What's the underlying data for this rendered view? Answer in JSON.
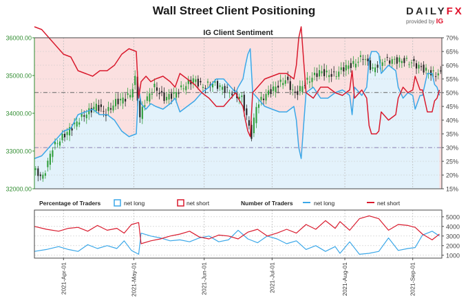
{
  "title": "Wall Street Client Positioning",
  "logo": {
    "brand_a": "DAILY",
    "brand_b": "FX",
    "provided_by": "provided by",
    "ig": "IG"
  },
  "colors": {
    "long": "#3aa7e8",
    "short": "#d9192c",
    "up": "#2f9e3b",
    "down": "#222222",
    "price_axis": "#2e8b2e",
    "long_fill": "#e3f2fb",
    "short_fill": "#fbe0e0"
  },
  "chart_data": {
    "type": "line",
    "title": "IG Client Sentiment",
    "x_range": [
      0,
      168
    ],
    "price_axis": {
      "ylim": [
        32000,
        36000
      ],
      "ticks": [
        "32000.00",
        "33000.00",
        "34000.00",
        "35000.00",
        "36000.00"
      ]
    },
    "pct_axis": {
      "ylim": [
        15,
        70
      ],
      "ticks": [
        "15%",
        "20%",
        "25%",
        "30%",
        "35%",
        "40%",
        "45%",
        "50%",
        "55%",
        "60%",
        "65%",
        "70%"
      ]
    },
    "count_axis": {
      "ylim": [
        700,
        5700
      ],
      "ticks": [
        "1000",
        "2000",
        "3000",
        "4000",
        "5000"
      ]
    },
    "x_ticks": [
      {
        "label": "2021-Apr-01",
        "x": 12
      },
      {
        "label": "2021-May-01",
        "x": 41
      },
      {
        "label": "2021-Jun-01",
        "x": 70
      },
      {
        "label": "2021-Jul-01",
        "x": 98
      },
      {
        "label": "2021-Aug-01",
        "x": 128
      },
      {
        "label": "2021-Sep-01",
        "x": 156
      }
    ],
    "reference_lines": {
      "price": 34550,
      "pct": 30
    },
    "net_long_pct": [
      [
        0,
        26
      ],
      [
        3,
        27
      ],
      [
        6,
        30
      ],
      [
        9,
        33
      ],
      [
        12,
        36
      ],
      [
        15,
        37
      ],
      [
        18,
        42
      ],
      [
        21,
        43
      ],
      [
        24,
        44
      ],
      [
        27,
        42
      ],
      [
        30,
        42
      ],
      [
        33,
        40
      ],
      [
        36,
        36
      ],
      [
        39,
        34
      ],
      [
        42,
        35
      ],
      [
        43,
        52
      ],
      [
        44,
        46
      ],
      [
        46,
        44
      ],
      [
        48,
        46
      ],
      [
        50,
        45
      ],
      [
        53,
        44
      ],
      [
        56,
        46
      ],
      [
        58,
        48
      ],
      [
        60,
        43
      ],
      [
        63,
        45
      ],
      [
        66,
        47
      ],
      [
        69,
        50
      ],
      [
        72,
        52
      ],
      [
        75,
        55
      ],
      [
        78,
        55
      ],
      [
        81,
        52
      ],
      [
        83,
        50
      ],
      [
        84,
        52
      ],
      [
        86,
        55
      ],
      [
        87,
        60
      ],
      [
        88,
        64
      ],
      [
        89,
        66
      ],
      [
        90,
        50
      ],
      [
        92,
        48
      ],
      [
        95,
        45
      ],
      [
        98,
        44
      ],
      [
        101,
        43
      ],
      [
        104,
        43
      ],
      [
        107,
        45
      ],
      [
        108,
        40
      ],
      [
        109,
        30
      ],
      [
        110,
        26
      ],
      [
        111,
        38
      ],
      [
        112,
        50
      ],
      [
        115,
        52
      ],
      [
        118,
        48
      ],
      [
        121,
        48
      ],
      [
        124,
        50
      ],
      [
        127,
        51
      ],
      [
        130,
        49
      ],
      [
        131,
        42
      ],
      [
        132,
        52
      ],
      [
        135,
        49
      ],
      [
        137,
        52
      ],
      [
        138,
        62
      ],
      [
        139,
        65
      ],
      [
        140,
        65
      ],
      [
        141,
        65
      ],
      [
        142,
        64
      ],
      [
        143,
        57
      ],
      [
        146,
        60
      ],
      [
        149,
        58
      ],
      [
        150,
        52
      ],
      [
        152,
        48
      ],
      [
        154,
        50
      ],
      [
        156,
        49
      ],
      [
        157,
        44
      ],
      [
        159,
        49
      ],
      [
        160,
        49
      ],
      [
        162,
        57
      ],
      [
        164,
        57
      ],
      [
        165,
        53
      ],
      [
        166,
        52
      ],
      [
        167,
        49
      ]
    ],
    "net_short_pct": [
      [
        0,
        74
      ],
      [
        3,
        73
      ],
      [
        6,
        70
      ],
      [
        9,
        67
      ],
      [
        12,
        64
      ],
      [
        15,
        63
      ],
      [
        18,
        58
      ],
      [
        21,
        57
      ],
      [
        24,
        56
      ],
      [
        27,
        58
      ],
      [
        30,
        58
      ],
      [
        33,
        60
      ],
      [
        36,
        64
      ],
      [
        39,
        66
      ],
      [
        42,
        65
      ],
      [
        43,
        48
      ],
      [
        44,
        54
      ],
      [
        46,
        56
      ],
      [
        48,
        54
      ],
      [
        50,
        55
      ],
      [
        53,
        56
      ],
      [
        56,
        54
      ],
      [
        58,
        52
      ],
      [
        60,
        57
      ],
      [
        63,
        55
      ],
      [
        66,
        53
      ],
      [
        69,
        50
      ],
      [
        72,
        48
      ],
      [
        75,
        45
      ],
      [
        78,
        45
      ],
      [
        81,
        48
      ],
      [
        83,
        50
      ],
      [
        84,
        48
      ],
      [
        86,
        45
      ],
      [
        87,
        40
      ],
      [
        88,
        36
      ],
      [
        89,
        34
      ],
      [
        90,
        50
      ],
      [
        92,
        52
      ],
      [
        95,
        55
      ],
      [
        98,
        56
      ],
      [
        101,
        57
      ],
      [
        104,
        57
      ],
      [
        107,
        55
      ],
      [
        108,
        60
      ],
      [
        109,
        70
      ],
      [
        110,
        74
      ],
      [
        111,
        62
      ],
      [
        112,
        50
      ],
      [
        115,
        48
      ],
      [
        118,
        52
      ],
      [
        121,
        52
      ],
      [
        124,
        50
      ],
      [
        127,
        49
      ],
      [
        130,
        51
      ],
      [
        131,
        58
      ],
      [
        132,
        48
      ],
      [
        135,
        51
      ],
      [
        137,
        48
      ],
      [
        138,
        38
      ],
      [
        139,
        35
      ],
      [
        140,
        35
      ],
      [
        141,
        35
      ],
      [
        142,
        36
      ],
      [
        143,
        43
      ],
      [
        146,
        40
      ],
      [
        149,
        42
      ],
      [
        150,
        48
      ],
      [
        152,
        52
      ],
      [
        154,
        50
      ],
      [
        156,
        51
      ],
      [
        157,
        56
      ],
      [
        159,
        51
      ],
      [
        160,
        51
      ],
      [
        162,
        43
      ],
      [
        164,
        43
      ],
      [
        165,
        47
      ],
      [
        166,
        48
      ],
      [
        167,
        51
      ]
    ],
    "net_long_count": [
      [
        0,
        1400
      ],
      [
        5,
        1600
      ],
      [
        10,
        1900
      ],
      [
        14,
        1600
      ],
      [
        18,
        1400
      ],
      [
        22,
        2100
      ],
      [
        26,
        1700
      ],
      [
        30,
        2000
      ],
      [
        34,
        1700
      ],
      [
        37,
        2500
      ],
      [
        40,
        1500
      ],
      [
        43,
        1100
      ],
      [
        44,
        3300
      ],
      [
        48,
        3000
      ],
      [
        52,
        2800
      ],
      [
        56,
        2500
      ],
      [
        60,
        2600
      ],
      [
        64,
        2400
      ],
      [
        68,
        2800
      ],
      [
        72,
        3000
      ],
      [
        76,
        2400
      ],
      [
        80,
        2600
      ],
      [
        84,
        3600
      ],
      [
        88,
        2700
      ],
      [
        92,
        2300
      ],
      [
        96,
        3000
      ],
      [
        100,
        2700
      ],
      [
        104,
        2200
      ],
      [
        108,
        2500
      ],
      [
        112,
        1600
      ],
      [
        116,
        2000
      ],
      [
        120,
        1400
      ],
      [
        124,
        1900
      ],
      [
        126,
        1200
      ],
      [
        130,
        2400
      ],
      [
        134,
        1100
      ],
      [
        138,
        1200
      ],
      [
        142,
        1400
      ],
      [
        146,
        2800
      ],
      [
        150,
        1500
      ],
      [
        154,
        1700
      ],
      [
        157,
        1800
      ],
      [
        160,
        3100
      ],
      [
        164,
        3500
      ],
      [
        167,
        3000
      ]
    ],
    "net_short_count": [
      [
        0,
        4000
      ],
      [
        5,
        3700
      ],
      [
        10,
        3500
      ],
      [
        14,
        3800
      ],
      [
        18,
        3900
      ],
      [
        22,
        3500
      ],
      [
        26,
        4100
      ],
      [
        30,
        3600
      ],
      [
        34,
        3800
      ],
      [
        37,
        3300
      ],
      [
        40,
        4200
      ],
      [
        43,
        4400
      ],
      [
        44,
        2200
      ],
      [
        48,
        2500
      ],
      [
        52,
        2700
      ],
      [
        56,
        3000
      ],
      [
        60,
        3200
      ],
      [
        64,
        3500
      ],
      [
        68,
        2900
      ],
      [
        72,
        2700
      ],
      [
        76,
        3100
      ],
      [
        80,
        3000
      ],
      [
        84,
        2700
      ],
      [
        88,
        3400
      ],
      [
        92,
        3700
      ],
      [
        96,
        3000
      ],
      [
        100,
        3300
      ],
      [
        104,
        3700
      ],
      [
        108,
        3300
      ],
      [
        112,
        4200
      ],
      [
        116,
        3700
      ],
      [
        120,
        4600
      ],
      [
        124,
        3800
      ],
      [
        126,
        4500
      ],
      [
        130,
        3600
      ],
      [
        134,
        4800
      ],
      [
        138,
        5100
      ],
      [
        142,
        4800
      ],
      [
        146,
        3600
      ],
      [
        150,
        4200
      ],
      [
        154,
        4100
      ],
      [
        157,
        3900
      ],
      [
        160,
        3200
      ],
      [
        164,
        2600
      ],
      [
        167,
        3200
      ]
    ],
    "legend": {
      "pct_title": "Percentage of Traders",
      "num_title": "Number of Traders",
      "net_long": "net long",
      "net_short": "net short"
    }
  }
}
